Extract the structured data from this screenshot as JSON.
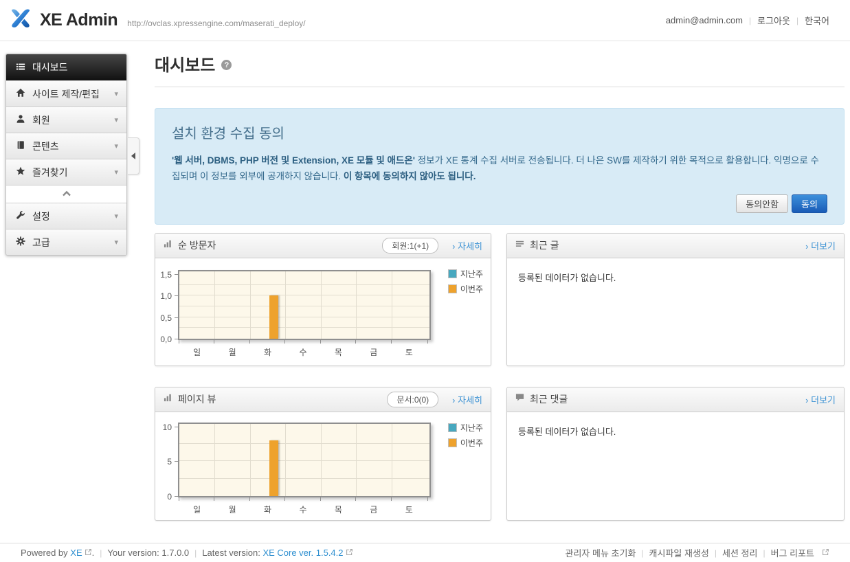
{
  "header": {
    "logo_text": "XE Admin",
    "site_url": "http://ovclas.xpressengine.com/maserati_deploy/",
    "user_email": "admin@admin.com",
    "logout_label": "로그아웃",
    "language_label": "한국어"
  },
  "sidebar": {
    "items": [
      {
        "label": "대시보드",
        "icon": "dashboard-list-icon",
        "active": true
      },
      {
        "label": "사이트 제작/편집",
        "icon": "home-icon"
      },
      {
        "label": "회원",
        "icon": "user-icon"
      },
      {
        "label": "콘텐츠",
        "icon": "book-icon"
      },
      {
        "label": "즐겨찾기",
        "icon": "star-icon"
      },
      {
        "label": "설정",
        "icon": "wrench-icon"
      },
      {
        "label": "고급",
        "icon": "gear-icon"
      }
    ]
  },
  "page": {
    "title": "대시보드",
    "help_glyph": "?"
  },
  "notice": {
    "title": "설치 환경 수집 동의",
    "body_bold_lead": "'웹 서버, DBMS, PHP 버전 및 Extension, XE 모듈 및 애드온'",
    "body_text": " 정보가 XE 통계 수집 서버로 전송됩니다. 더 나은 SW를 제작하기 위한 목적으로 활용합니다. 익명으로 수집되며 이 정보를 외부에 공개하지 않습니다. ",
    "body_bold_tail": "이 항목에 동의하지 않아도 됩니다.",
    "decline_label": "동의안함",
    "agree_label": "동의"
  },
  "panels": {
    "visitors": {
      "title": "순 방문자",
      "badge": "회원:1(+1)",
      "link": "› 자세히"
    },
    "pageviews": {
      "title": "페이지 뷰",
      "badge": "문서:0(0)",
      "link": "› 자세히"
    },
    "recent_posts": {
      "title": "최근 글",
      "link": "› 더보기",
      "empty": "등록된 데이터가 없습니다."
    },
    "recent_comments": {
      "title": "최근 댓글",
      "link": "› 더보기",
      "empty": "등록된 데이터가 없습니다."
    }
  },
  "chart_data": [
    {
      "type": "bar",
      "title": "순 방문자",
      "categories": [
        "일",
        "월",
        "화",
        "수",
        "목",
        "금",
        "토"
      ],
      "series": [
        {
          "name": "지난주",
          "color": "#48a8bf",
          "values": [
            0,
            0,
            0,
            0,
            0,
            0,
            0
          ]
        },
        {
          "name": "이번주",
          "color": "#eea22d",
          "values": [
            0,
            0,
            1,
            0,
            0,
            0,
            0
          ]
        }
      ],
      "ylim": [
        0,
        1.5
      ],
      "yticks": [
        "0,0",
        "0,5",
        "1,0",
        "1,5"
      ],
      "grid": true,
      "legend_position": "right",
      "plot_bg": "#fdf8ea"
    },
    {
      "type": "bar",
      "title": "페이지 뷰",
      "categories": [
        "일",
        "월",
        "화",
        "수",
        "목",
        "금",
        "토"
      ],
      "series": [
        {
          "name": "지난주",
          "color": "#48a8bf",
          "values": [
            0,
            0,
            0,
            0,
            0,
            0,
            0
          ]
        },
        {
          "name": "이번주",
          "color": "#eea22d",
          "values": [
            0,
            0,
            8,
            0,
            0,
            0,
            0
          ]
        }
      ],
      "ylim": [
        0,
        10
      ],
      "yticks": [
        "0",
        "5",
        "10"
      ],
      "grid": true,
      "legend_position": "right",
      "plot_bg": "#fdf8ea"
    }
  ],
  "footer": {
    "powered_by_prefix": "Powered by",
    "powered_by_link": "XE",
    "powered_by_suffix": ".",
    "sep": "|",
    "your_version_label": "Your version: 1.7.0.0",
    "latest_version_label": "Latest version:",
    "latest_version_link": "XE Core ver. 1.5.4.2",
    "links": [
      "관리자 메뉴 초기화",
      "캐시파일 재생성",
      "세션 정리",
      "버그 리포트"
    ]
  },
  "colors": {
    "accent_blue": "#1a5cb7",
    "link_blue": "#3e93d4",
    "notice_bg": "#d8ebf6",
    "series_last_week": "#48a8bf",
    "series_this_week": "#eea22d",
    "chart_bg": "#fdf8ea",
    "sidebar_active_bg": "#1a1a1a"
  }
}
